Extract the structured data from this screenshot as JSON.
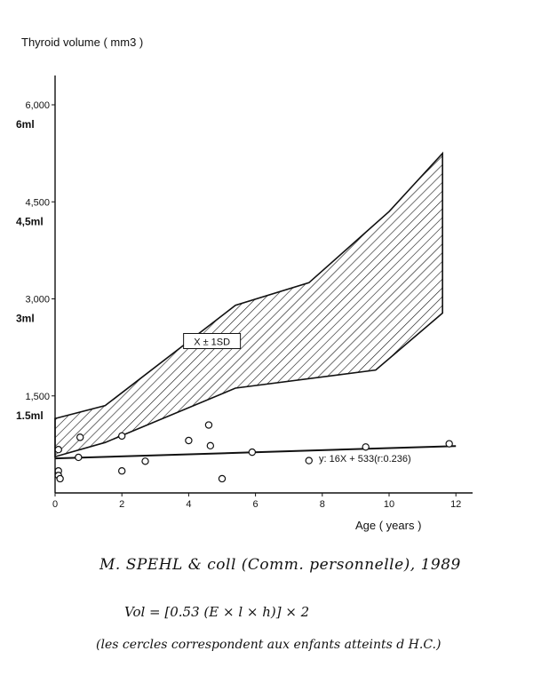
{
  "chart_data": {
    "type": "area",
    "ylabel": "Thyroid volume ( mm3 )",
    "xlabel": "Age ( years )",
    "xlim": [
      0,
      12.5
    ],
    "ylim": [
      0,
      6000
    ],
    "x_ticks": [
      0,
      2,
      4,
      6,
      8,
      10,
      12
    ],
    "y_ticks": [
      {
        "value": 1500,
        "label": "1,500",
        "alt_label": "1.5ml"
      },
      {
        "value": 3000,
        "label": "3,000",
        "alt_label": "3ml"
      },
      {
        "value": 4500,
        "label": "4,500",
        "alt_label": "4,5ml"
      },
      {
        "value": 6000,
        "label": "6,000",
        "alt_label": "6ml"
      }
    ],
    "band": {
      "label": "X ± 1SD",
      "upper": [
        [
          0,
          1150
        ],
        [
          1.5,
          1350
        ],
        [
          5.4,
          2900
        ],
        [
          7.6,
          3250
        ],
        [
          10,
          4350
        ],
        [
          11.6,
          5250
        ]
      ],
      "lower": [
        [
          0,
          560
        ],
        [
          1.5,
          780
        ],
        [
          5.4,
          1620
        ],
        [
          9.6,
          1900
        ],
        [
          11.6,
          2780
        ]
      ]
    },
    "regression": {
      "label": "y: 16X + 533(r:0.236)",
      "x_range": [
        0,
        12
      ],
      "slope": 16,
      "intercept": 533
    },
    "points": [
      [
        0.1,
        670
      ],
      [
        0.1,
        340
      ],
      [
        0.1,
        270
      ],
      [
        0.15,
        220
      ],
      [
        0.75,
        860
      ],
      [
        0.7,
        550
      ],
      [
        2.0,
        880
      ],
      [
        2.0,
        340
      ],
      [
        2.7,
        490
      ],
      [
        4.0,
        810
      ],
      [
        4.6,
        1050
      ],
      [
        4.65,
        730
      ],
      [
        5.0,
        220
      ],
      [
        5.9,
        630
      ],
      [
        7.6,
        500
      ],
      [
        9.3,
        710
      ],
      [
        11.8,
        760
      ]
    ]
  },
  "annotations": {
    "credit": "M. SPEHL & coll (Comm. personnelle), 1989",
    "formula": "Vol = [0.53 (E × l × h)] × 2",
    "note": "(les cercles correspondent aux enfants atteints d H.C.)"
  },
  "colors": {
    "ink": "#111111",
    "background": "#ffffff"
  }
}
